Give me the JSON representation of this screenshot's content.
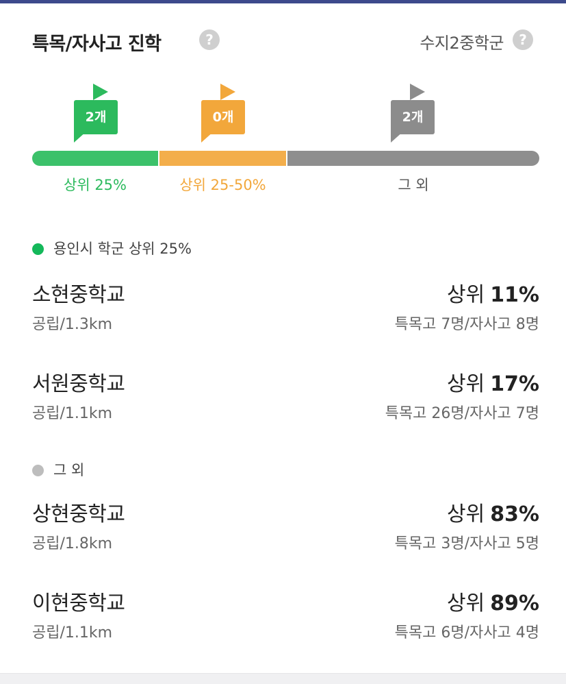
{
  "header": {
    "title": "특목/자사고 진학",
    "district": "수지2중학군",
    "help_glyph": "?"
  },
  "distribution": {
    "flags": [
      {
        "label": "2개",
        "color": "#2cba5d"
      },
      {
        "label": "0개",
        "color": "#f2a73b"
      },
      {
        "label": "2개",
        "color": "#8c8c8c"
      }
    ],
    "segments": [
      {
        "label": "상위 25%",
        "color": "#3cc16a"
      },
      {
        "label": "상위 25-50%",
        "color": "#f3ae4b"
      },
      {
        "label": "그 외",
        "color": "#8e8e8e"
      }
    ]
  },
  "sections": [
    {
      "heading": "용인시 학군 상위 25%",
      "dot_color": "#14b85a",
      "schools": [
        {
          "name": "소현중학교",
          "meta": "공립/1.3km",
          "rank_prefix": "상위",
          "rank_value": "11%",
          "admissions": "특목고 7명/자사고 8명"
        },
        {
          "name": "서원중학교",
          "meta": "공립/1.1km",
          "rank_prefix": "상위",
          "rank_value": "17%",
          "admissions": "특목고 26명/자사고 7명"
        }
      ]
    },
    {
      "heading": "그 외",
      "dot_color": "#bdbdbd",
      "schools": [
        {
          "name": "상현중학교",
          "meta": "공립/1.8km",
          "rank_prefix": "상위",
          "rank_value": "83%",
          "admissions": "특목고 3명/자사고 5명"
        },
        {
          "name": "이현중학교",
          "meta": "공립/1.1km",
          "rank_prefix": "상위",
          "rank_value": "89%",
          "admissions": "특목고 6명/자사고 4명"
        }
      ]
    }
  ]
}
